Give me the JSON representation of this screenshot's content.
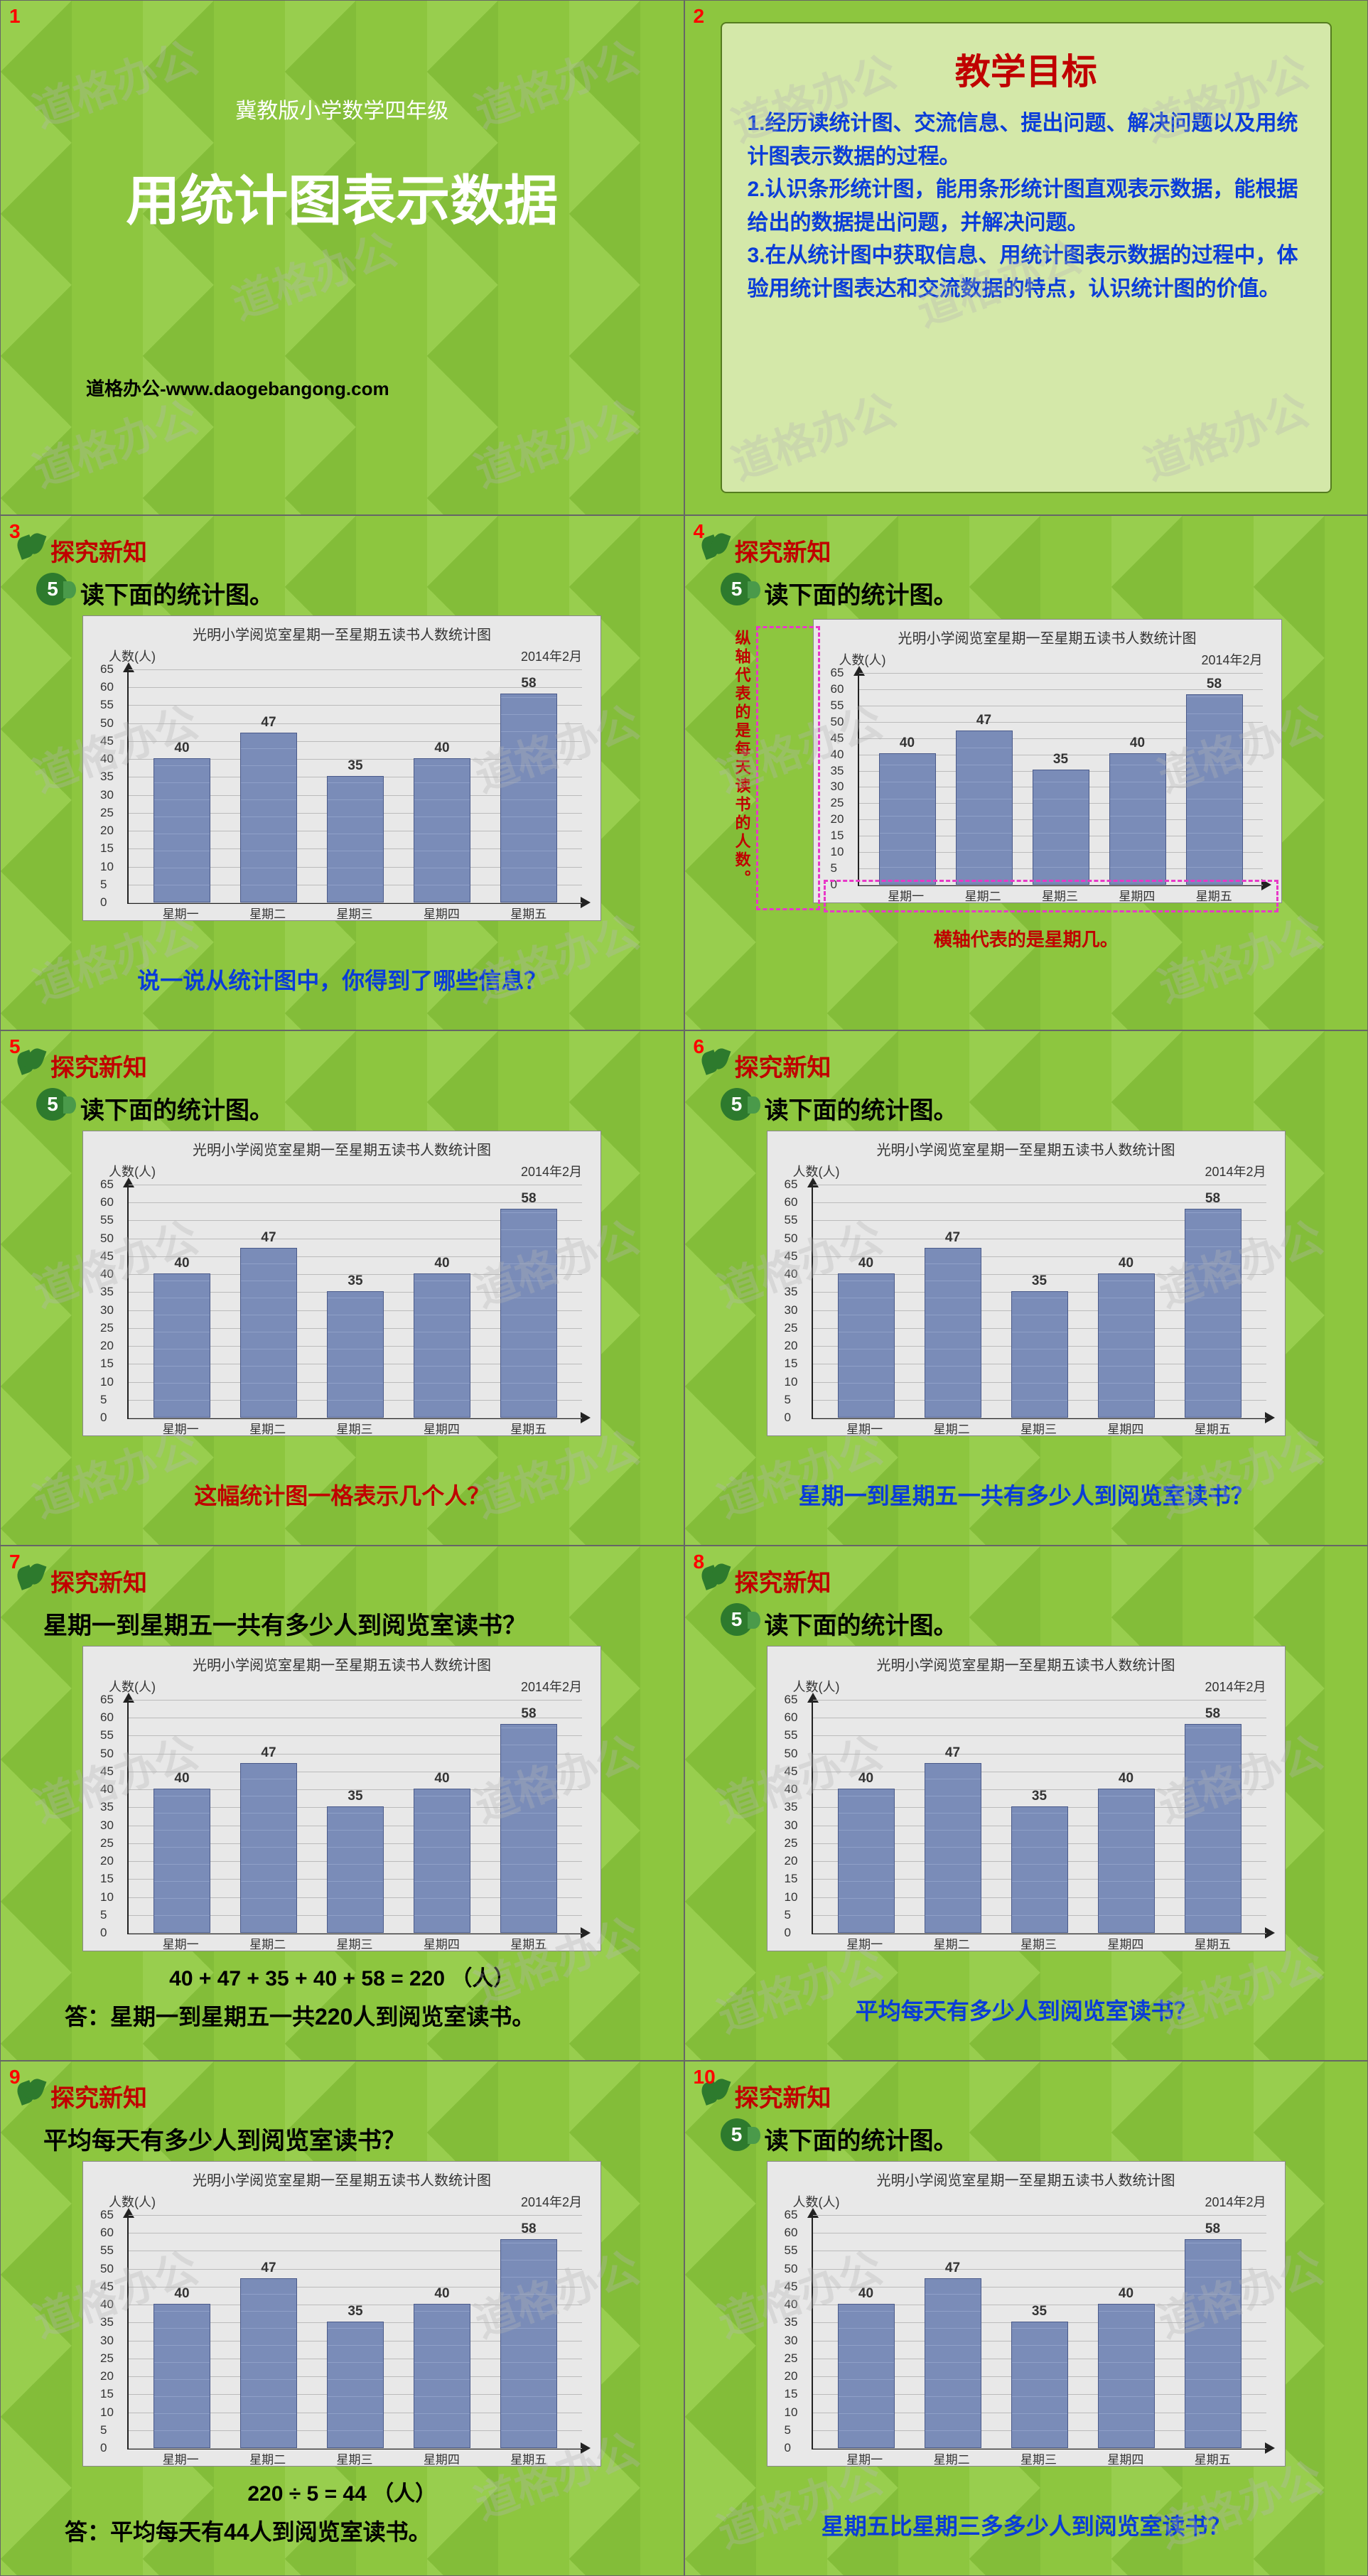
{
  "nums": {
    "red": "#ff0000"
  },
  "slide1": {
    "num": "1",
    "subtitle": "冀教版小学数学四年级",
    "title": "用统计图表示数据",
    "source": "道格办公-www.daogebangong.com"
  },
  "slide2": {
    "num": "2",
    "heading": "教学目标",
    "p1": "1.经历读统计图、交流信息、提出问题、解决问题以及用统计图表示数据的过程。",
    "p2": "2.认识条形统计图，能用条形统计图直观表示数据，能根据给出的数据提出问题，并解决问题。",
    "p3": "3.在从统计图中获取信息、用统计图表示数据的过程中，体验用统计图表达和交流数据的特点，认识统计图的价值。"
  },
  "common": {
    "section": "探究新知",
    "bullet": "5",
    "instruct": "读下面的统计图。"
  },
  "chart": {
    "title": "光明小学阅览室星期一至星期五读书人数统计图",
    "y_label": "人数(人)",
    "date": "2014年2月",
    "y_ticks": [
      0,
      5,
      10,
      15,
      20,
      25,
      30,
      35,
      40,
      45,
      50,
      55,
      60,
      65
    ],
    "y_max": 65,
    "categories": [
      "星期一",
      "星期二",
      "星期三",
      "星期四",
      "星期五"
    ],
    "values": [
      40,
      47,
      35,
      40,
      58
    ],
    "bar_fill": "#8fa0c8",
    "bar_stroke": "#4a5a8a",
    "bg": "#e8e8e8",
    "grid": "#bbbbbb"
  },
  "slide3": {
    "num": "3",
    "q": "说一说从统计图中，你得到了哪些信息？"
  },
  "slide4": {
    "num": "4",
    "vnote": "纵轴代表的是每天读书的人数。",
    "hnote": "横轴代表的是星期几。"
  },
  "slide5": {
    "num": "5",
    "q": "这幅统计图一格表示几个人？"
  },
  "slide6": {
    "num": "6",
    "q": "星期一到星期五一共有多少人到阅览室读书？"
  },
  "slide7": {
    "num": "7",
    "heading": "星期一到星期五一共有多少人到阅览室读书？",
    "calc": "40 + 47 + 35 + 40 + 58 = 220 （人）",
    "ans": "答：星期一到星期五一共220人到阅览室读书。"
  },
  "slide8": {
    "num": "8",
    "q": "平均每天有多少人到阅览室读书？"
  },
  "slide9": {
    "num": "9",
    "heading": "平均每天有多少人到阅览室读书？",
    "calc": "220 ÷ 5 = 44 （人）",
    "ans": "答：平均每天有44人到阅览室读书。"
  },
  "slide10": {
    "num": "10",
    "q": "星期五比星期三多多少人到阅览室读书？"
  },
  "wm": "道格办公"
}
